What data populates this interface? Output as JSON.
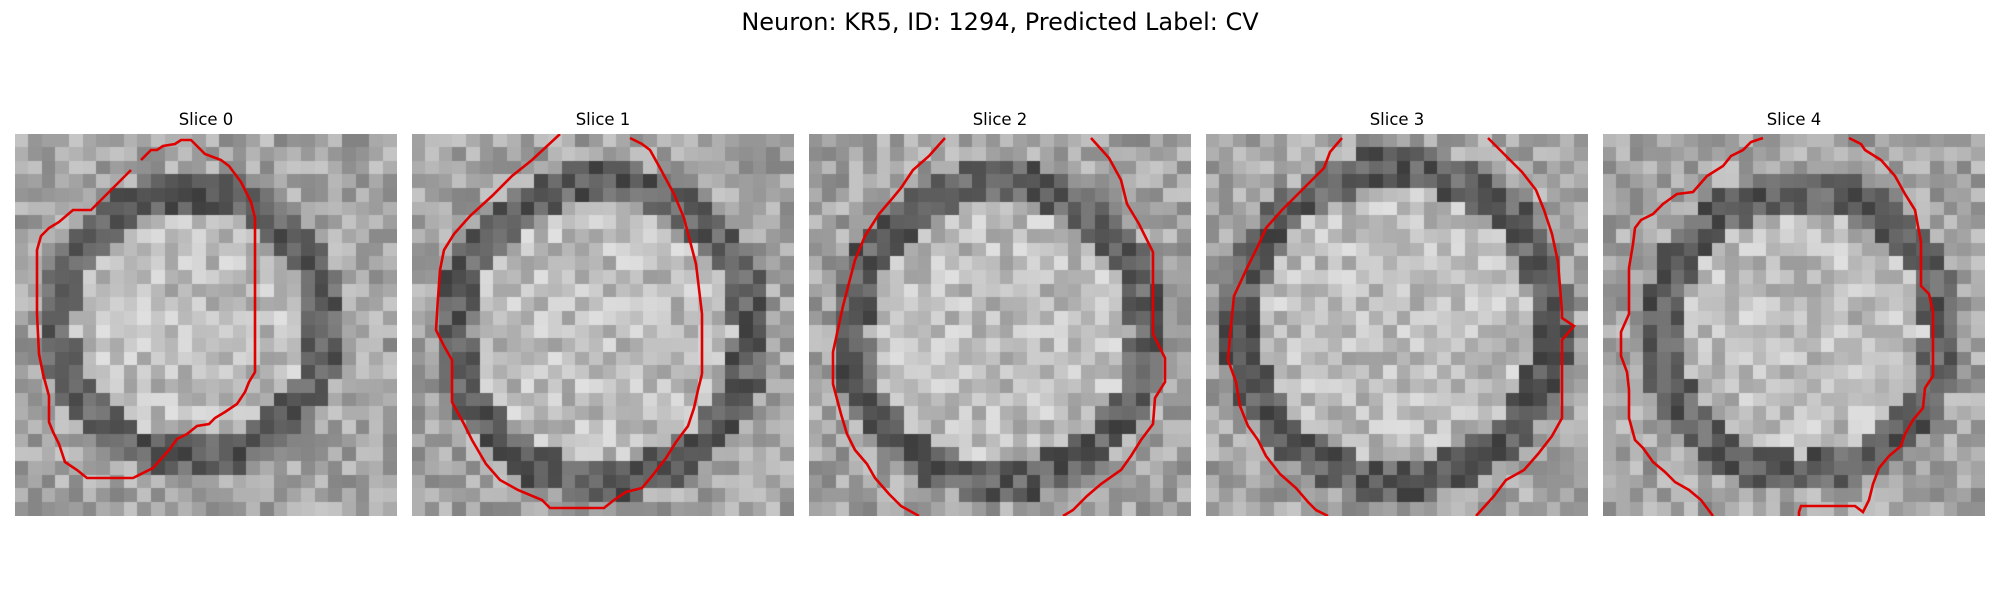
{
  "figure": {
    "title": "Neuron: KR5, ID: 1294, Predicted Label: CV"
  },
  "colors": {
    "contour": "#e00000",
    "background": "#ffffff"
  },
  "panels": [
    {
      "label": "Slice 0"
    },
    {
      "label": "Slice 1"
    },
    {
      "label": "Slice 2"
    },
    {
      "label": "Slice 3"
    },
    {
      "label": "Slice 4"
    }
  ]
}
